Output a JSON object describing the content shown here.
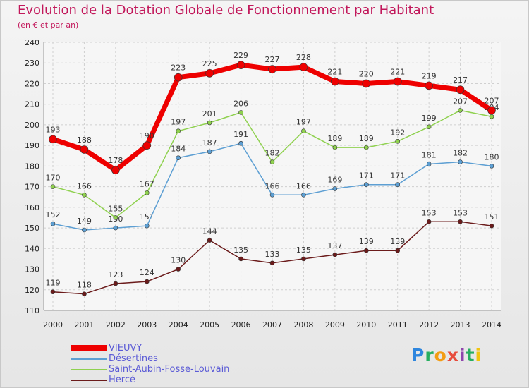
{
  "title": "Evolution de la Dotation Globale de Fonctionnement par Habitant",
  "subtitle": "(en € et par an)",
  "logo": {
    "text": "Proxiti",
    "letters": [
      {
        "ch": "P",
        "color": "#2e86de"
      },
      {
        "ch": "r",
        "color": "#27ae60"
      },
      {
        "ch": "o",
        "color": "#f39c12"
      },
      {
        "ch": "x",
        "color": "#e74c3c"
      },
      {
        "ch": "i",
        "color": "#8e44ad"
      },
      {
        "ch": "t",
        "color": "#27ae60"
      },
      {
        "ch": "i",
        "color": "#f1c40f"
      }
    ]
  },
  "chart_data": {
    "type": "line",
    "title": "Evolution de la Dotation Globale de Fonctionnement par Habitant",
    "subtitle": "(en € et par an)",
    "x": [
      "2000",
      "2001",
      "2002",
      "2003",
      "2004",
      "2005",
      "2006",
      "2007",
      "2008",
      "2009",
      "2010",
      "2011",
      "2012",
      "2013",
      "2014"
    ],
    "ylim": [
      110,
      240
    ],
    "yticks": [
      110,
      120,
      130,
      140,
      150,
      160,
      170,
      180,
      190,
      200,
      210,
      220,
      230,
      240
    ],
    "grid": true,
    "legend_position": "bottom-left",
    "series": [
      {
        "name": "VIEUVY",
        "color": "#ee0000",
        "values": [
          193,
          188,
          178,
          190,
          223,
          225,
          229,
          227,
          228,
          221,
          220,
          221,
          219,
          217,
          207
        ]
      },
      {
        "name": "Désertines",
        "color": "#5d9fd3",
        "values": [
          152,
          149,
          150,
          151,
          184,
          187,
          191,
          166,
          166,
          169,
          171,
          171,
          181,
          182,
          180
        ]
      },
      {
        "name": "Saint-Aubin-Fosse-Louvain",
        "color": "#8fd14f",
        "values": [
          170,
          166,
          155,
          167,
          197,
          201,
          206,
          182,
          197,
          189,
          189,
          192,
          199,
          207,
          204
        ]
      },
      {
        "name": "Hercé",
        "color": "#6b1b1b",
        "values": [
          119,
          118,
          123,
          124,
          130,
          144,
          135,
          133,
          135,
          137,
          139,
          139,
          153,
          153,
          151
        ]
      }
    ]
  }
}
